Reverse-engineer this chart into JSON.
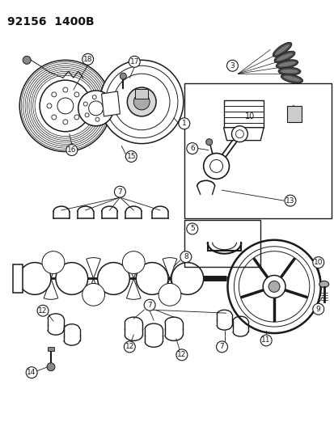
{
  "title": "92156  1400B",
  "bg_color": "#ffffff",
  "line_color": "#1a1a1a",
  "label_color": "#111111",
  "fig_width": 4.14,
  "fig_height": 5.33,
  "dpi": 100
}
